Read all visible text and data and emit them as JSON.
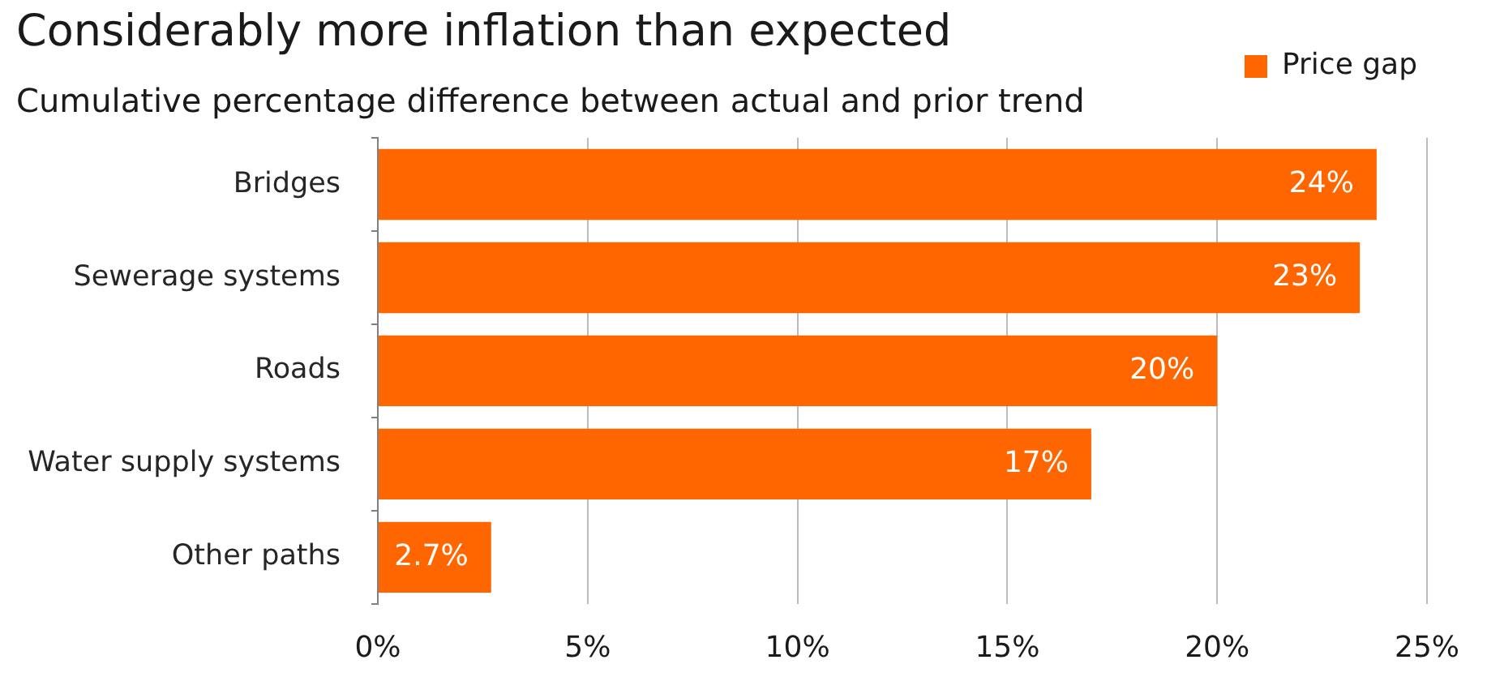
{
  "chart_data": {
    "type": "bar",
    "title": "Considerably more inflation than expected",
    "subtitle": "Cumulative percentage difference between actual and prior trend",
    "orientation": "horizontal",
    "categories": [
      "Bridges",
      "Sewerage systems",
      "Roads",
      "Water supply systems",
      "Other paths"
    ],
    "series": [
      {
        "name": "Price gap",
        "color": "#ff6600",
        "values": [
          23.8,
          23.4,
          20,
          17,
          2.7
        ],
        "value_labels": [
          "24%",
          "23%",
          "20%",
          "17%",
          "2.7%"
        ]
      }
    ],
    "xlim": [
      0,
      25
    ],
    "xticks": [
      {
        "value": 0,
        "label": "0%"
      },
      {
        "value": 5,
        "label": "5%"
      },
      {
        "value": 10,
        "label": "10%"
      },
      {
        "value": 15,
        "label": "15%"
      },
      {
        "value": 20,
        "label": "20%"
      },
      {
        "value": 25,
        "label": "25%"
      }
    ],
    "grid": "x",
    "legend": "top right"
  }
}
